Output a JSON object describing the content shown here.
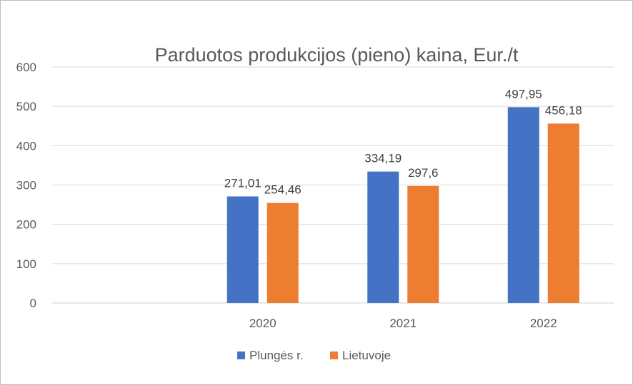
{
  "chart_data": {
    "type": "bar",
    "title": "Parduotos produkcijos (pieno) kaina, Eur./t",
    "categories": [
      "",
      "2020",
      "2021",
      "2022"
    ],
    "series": [
      {
        "name": "Plungės r.",
        "color": "#4472C4",
        "values": [
          null,
          271.01,
          334.19,
          497.95
        ],
        "labels": [
          "",
          "271,01",
          "334,19",
          "497,95"
        ]
      },
      {
        "name": "Lietuvoje",
        "color": "#ED7D31",
        "values": [
          null,
          254.46,
          297.6,
          456.18
        ],
        "labels": [
          "",
          "254,46",
          "297,6",
          "456,18"
        ]
      }
    ],
    "ylim": [
      0,
      600
    ],
    "yticks": [
      0,
      100,
      200,
      300,
      400,
      500,
      600
    ],
    "grid": true,
    "legend": "bottom"
  }
}
